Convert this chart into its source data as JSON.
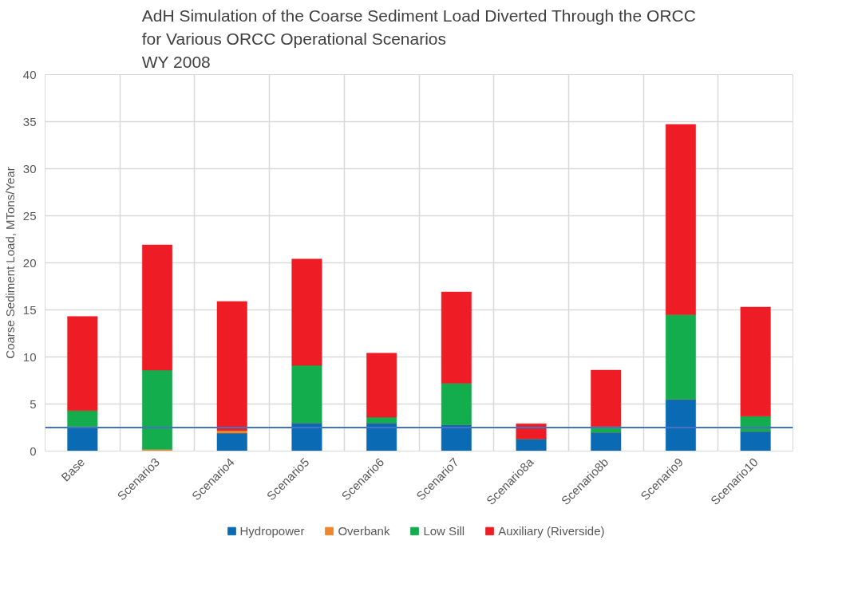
{
  "chart_data": {
    "type": "bar",
    "stacked": true,
    "title": "AdH Simulation of the Coarse Sediment Load Diverted Through the ORCC\nfor Various ORCC Operational Scenarios\nWY 2008",
    "ylabel": "Coarse Sediment Load, MTons/Year",
    "categories": [
      "Base",
      "Scenario3",
      "Scenario4",
      "Scenario5",
      "Scenario6",
      "Scenario7",
      "Scenario8a",
      "Scenario8b",
      "Scenario9",
      "Scenario10"
    ],
    "series": [
      {
        "name": "Hydropower",
        "color": "#0a6ab4",
        "values": [
          2.6,
          0,
          1.9,
          3.0,
          3.0,
          2.8,
          1.3,
          2.0,
          5.5,
          2.1
        ]
      },
      {
        "name": "Overbank",
        "color": "#f0852d",
        "values": [
          0,
          0.2,
          0.3,
          0,
          0,
          0,
          0,
          0,
          0,
          0
        ]
      },
      {
        "name": "Low Sill",
        "color": "#13ad4e",
        "values": [
          1.7,
          8.4,
          0,
          6.1,
          0.6,
          4.4,
          0,
          0.6,
          9.0,
          1.6
        ]
      },
      {
        "name": "Auxiliary (Riverside)",
        "color": "#ee1c25",
        "values": [
          10.0,
          13.3,
          13.7,
          11.3,
          6.8,
          9.7,
          1.6,
          6.0,
          20.2,
          11.6
        ]
      }
    ],
    "ylim": [
      0,
      40
    ],
    "yticks": [
      0,
      5,
      10,
      15,
      20,
      25,
      30,
      35,
      40
    ],
    "ref_lines": [
      {
        "axis": "y",
        "value": 2.5,
        "color": "#4472c4"
      }
    ],
    "grid": true,
    "legend": "bottom"
  }
}
